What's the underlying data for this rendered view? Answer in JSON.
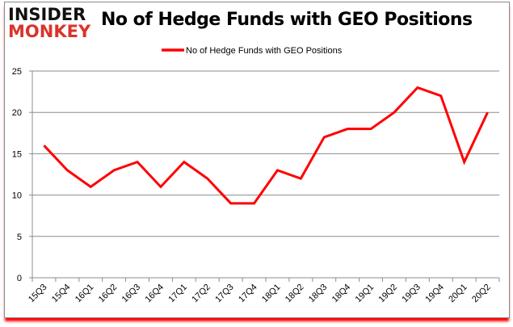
{
  "logo": {
    "line1": "INSIDER",
    "line2": "MONKEY"
  },
  "chart_data": {
    "type": "line",
    "title": "No of Hedge Funds with GEO Positions",
    "categories": [
      "15Q3",
      "15Q4",
      "16Q1",
      "16Q2",
      "16Q3",
      "16Q4",
      "17Q1",
      "17Q2",
      "17Q3",
      "17Q4",
      "18Q1",
      "18Q2",
      "18Q3",
      "18Q4",
      "19Q1",
      "19Q2",
      "19Q3",
      "19Q4",
      "20Q1",
      "20Q2"
    ],
    "series": [
      {
        "name": "No of Hedge Funds with GEO Positions",
        "color": "#ff0000",
        "values": [
          16,
          13,
          11,
          13,
          14,
          11,
          14,
          12,
          9,
          9,
          13,
          12,
          17,
          18,
          18,
          20,
          23,
          22,
          14,
          20
        ]
      }
    ],
    "ylim": [
      0,
      25
    ],
    "yticks": [
      0,
      5,
      10,
      15,
      20,
      25
    ],
    "grid": true,
    "legend": "top-center",
    "xlabel": "",
    "ylabel": ""
  }
}
